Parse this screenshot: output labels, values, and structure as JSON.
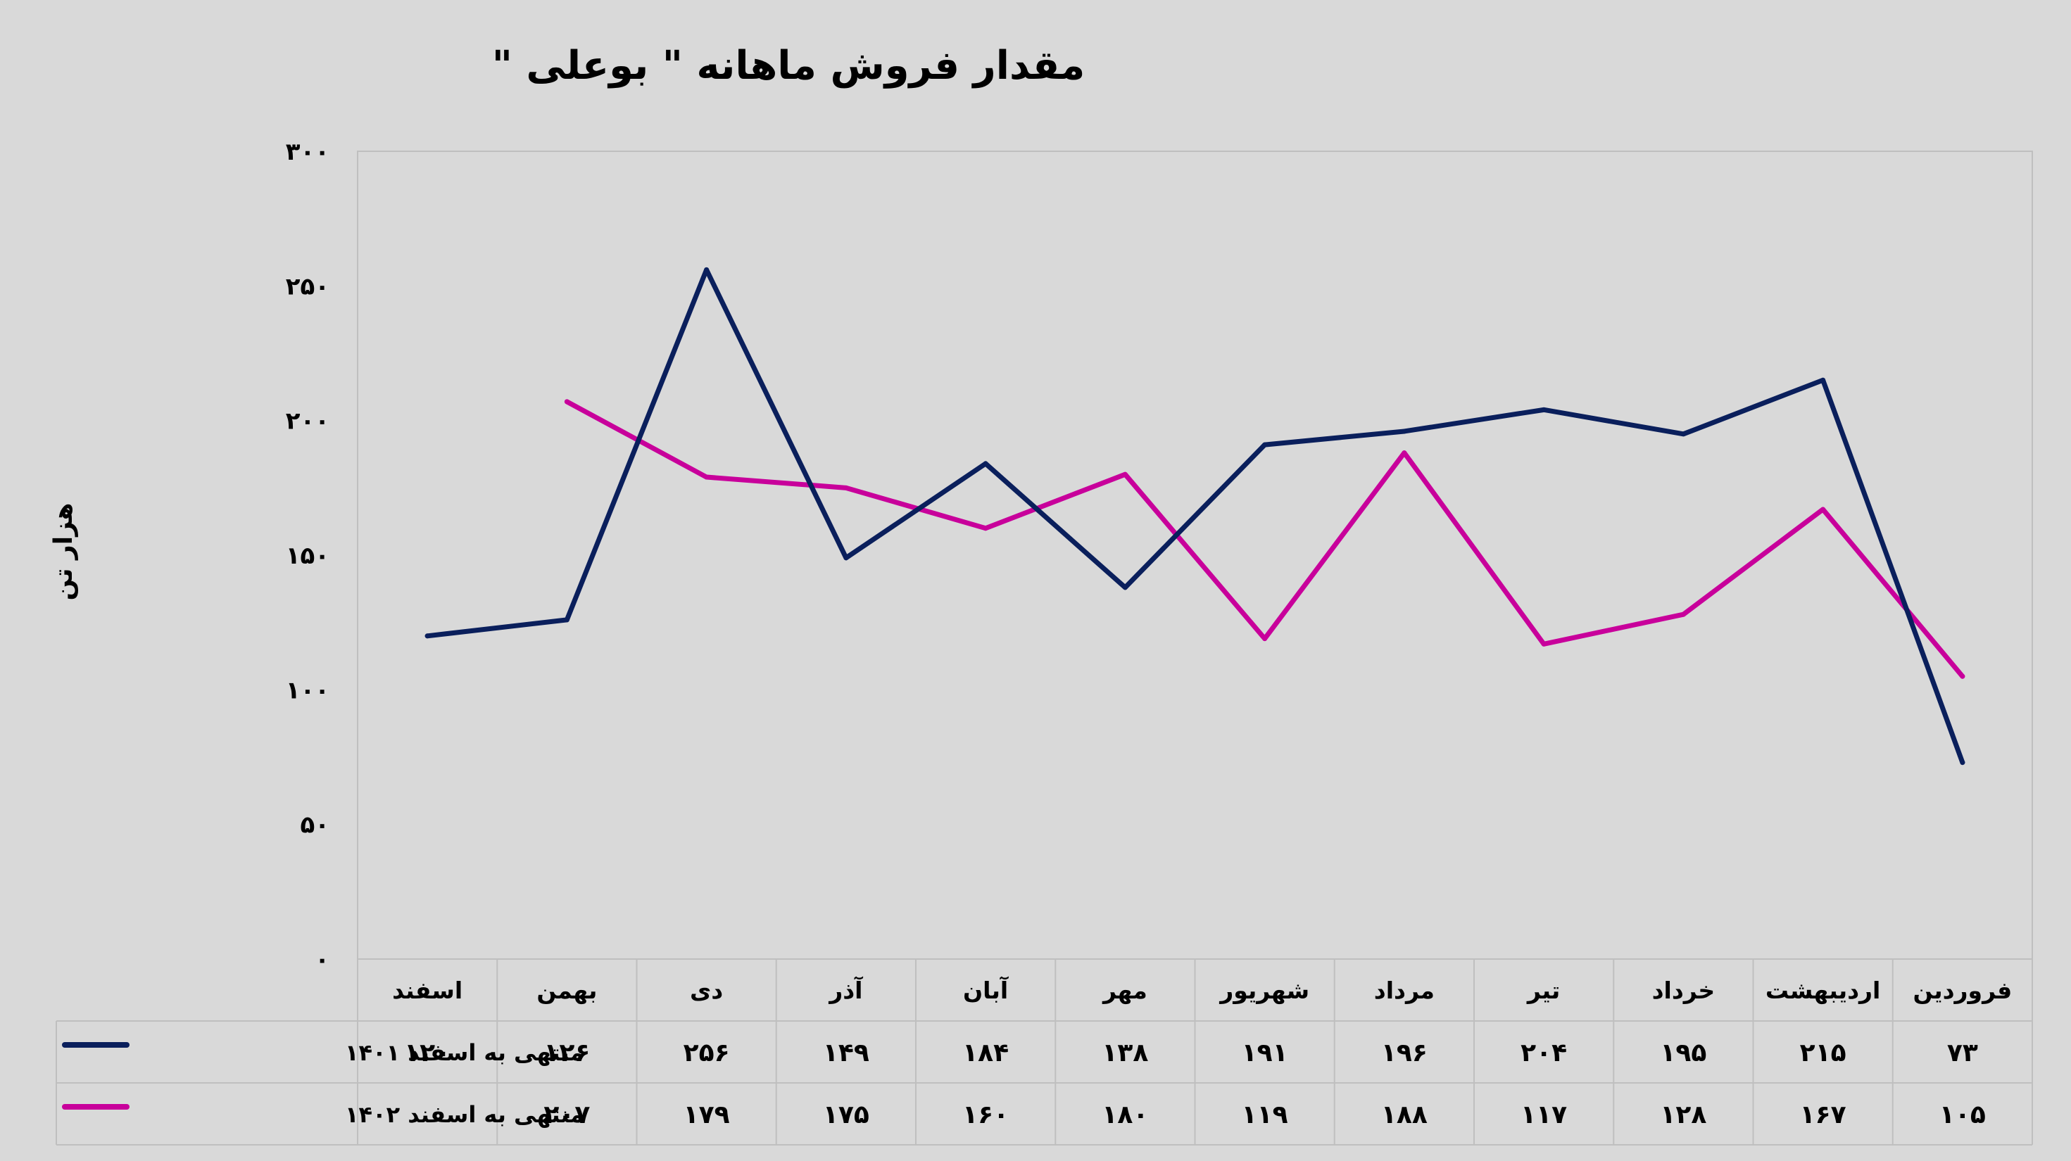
{
  "chart_data": {
    "type": "line",
    "title": "مقدار فروش ماهانه \" بوعلی \"",
    "ylabel": "هزار تن",
    "ylim": [
      0,
      300
    ],
    "yticks": [
      {
        "value": 0,
        "label": "۰"
      },
      {
        "value": 50,
        "label": "۵۰"
      },
      {
        "value": 100,
        "label": "۱۰۰"
      },
      {
        "value": 150,
        "label": "۱۵۰"
      },
      {
        "value": 200,
        "label": "۲۰۰"
      },
      {
        "value": 250,
        "label": "۲۵۰"
      },
      {
        "value": 300,
        "label": "۳۰۰"
      }
    ],
    "categories": [
      "فروردین",
      "اردیبهشت",
      "خرداد",
      "تیر",
      "مرداد",
      "شهریور",
      "مهر",
      "آبان",
      "آذر",
      "دی",
      "بهمن",
      "اسفند"
    ],
    "series": [
      {
        "name": "منتهی به اسفند ۱۴۰۱",
        "color": "#0a1f5c",
        "values": [
          73,
          215,
          195,
          204,
          196,
          191,
          138,
          184,
          149,
          256,
          126,
          120
        ],
        "labels": [
          "۷۳",
          "۲۱۵",
          "۱۹۵",
          "۲۰۴",
          "۱۹۶",
          "۱۹۱",
          "۱۳۸",
          "۱۸۴",
          "۱۴۹",
          "۲۵۶",
          "۱۲۶",
          "۱۲۰"
        ]
      },
      {
        "name": "منتهی به اسفند ۱۴۰۲",
        "color": "#c8009b",
        "values": [
          105,
          167,
          128,
          117,
          188,
          119,
          180,
          160,
          175,
          179,
          207,
          null
        ],
        "labels": [
          "۱۰۵",
          "۱۶۷",
          "۱۲۸",
          "۱۱۷",
          "۱۸۸",
          "۱۱۹",
          "۱۸۰",
          "۱۶۰",
          "۱۷۵",
          "۱۷۹",
          "۲۰۷",
          ""
        ]
      }
    ],
    "grid": false,
    "legend": "data-table"
  }
}
